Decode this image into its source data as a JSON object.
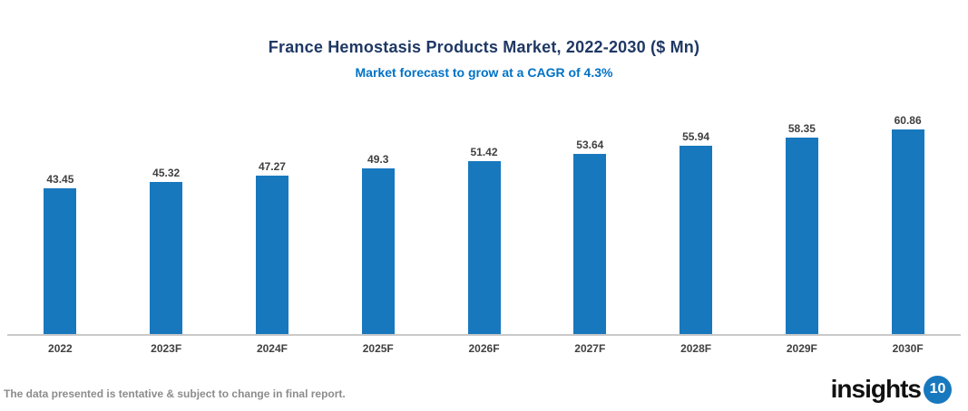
{
  "chart_data": {
    "type": "bar",
    "title": "France Hemostasis Products Market, 2022-2030 ($ Mn)",
    "subtitle": "Market forecast to grow at a CAGR of 4.3%",
    "categories": [
      "2022",
      "2023F",
      "2024F",
      "2025F",
      "2026F",
      "2027F",
      "2028F",
      "2029F",
      "2030F"
    ],
    "values": [
      43.45,
      45.32,
      47.27,
      49.3,
      51.42,
      53.64,
      55.94,
      58.35,
      60.86
    ],
    "value_labels": [
      "43.45",
      "45.32",
      "47.27",
      "49.3",
      "51.42",
      "53.64",
      "55.94",
      "58.35",
      "60.86"
    ],
    "xlabel": "",
    "ylabel": "",
    "ylim": [
      0,
      62
    ],
    "grid": false,
    "legend": "none",
    "bar_color": "#1878BE"
  },
  "footer": {
    "disclaimer": "The data presented is tentative & subject to change in final report.",
    "logo_text": "insights",
    "logo_badge": "10"
  },
  "colors": {
    "title": "#1F3864",
    "subtitle": "#0072C6",
    "bar": "#1878BE",
    "data_label": "#404040",
    "axis_line": "#C9C9C9",
    "disclaimer": "#8C8C8C",
    "logo_badge_bg": "#1878BE"
  }
}
